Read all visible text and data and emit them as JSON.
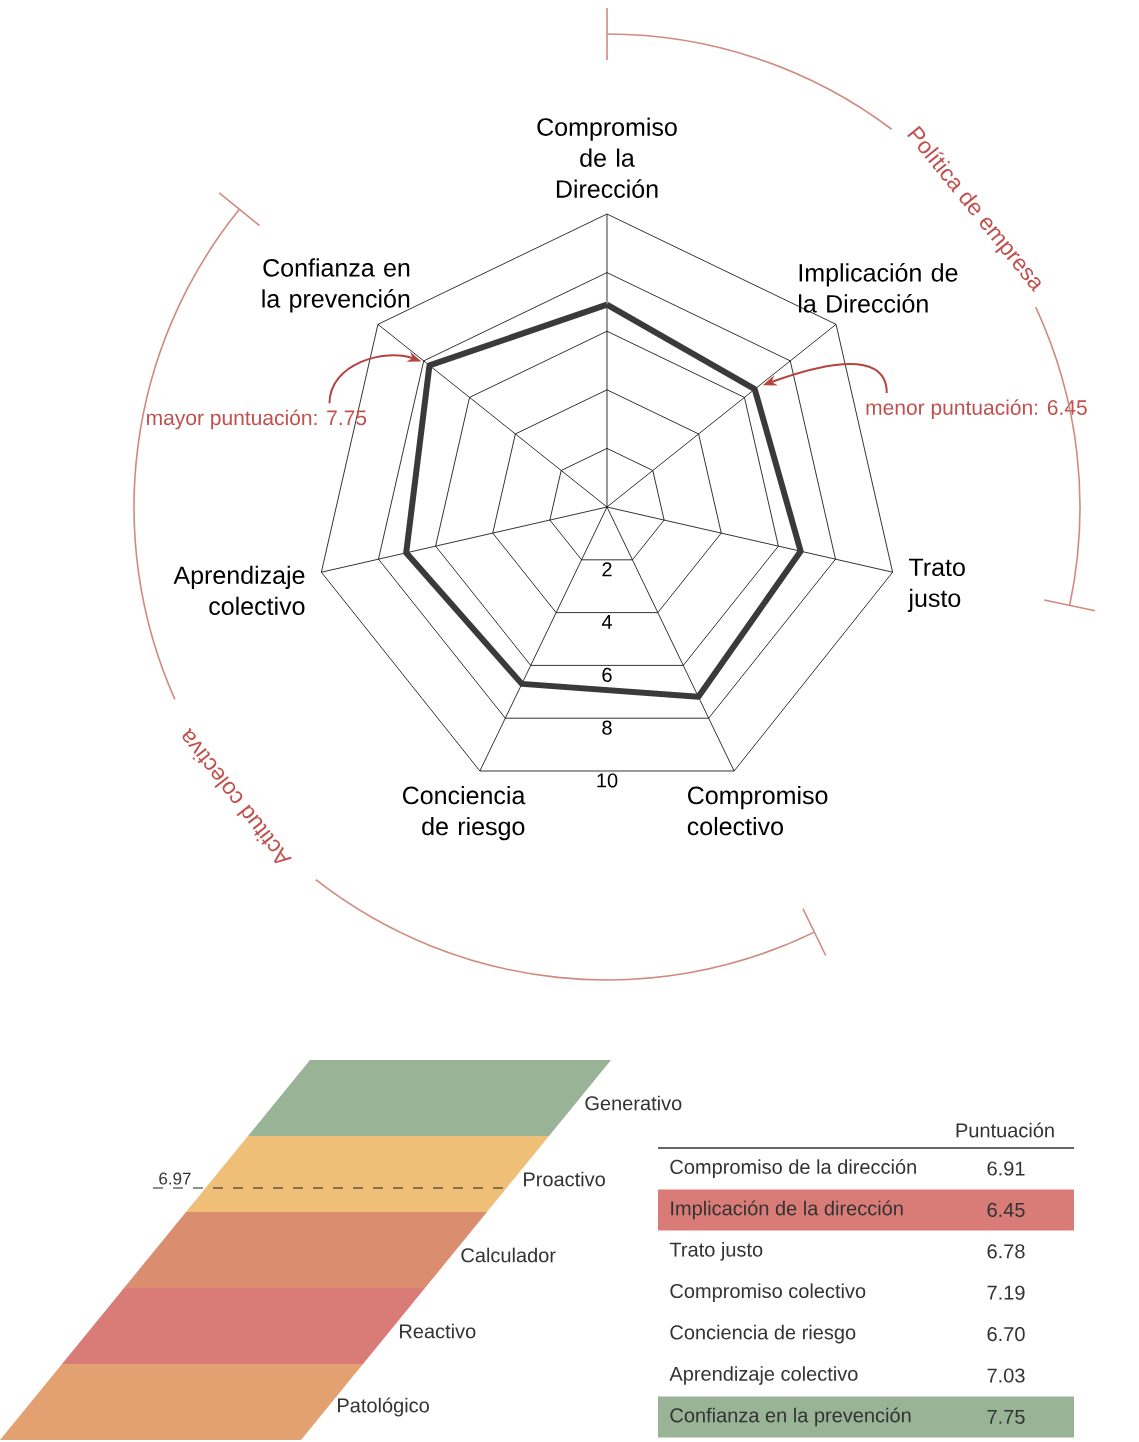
{
  "chart_data": [
    {
      "type": "radar",
      "categories": [
        "Compromiso de la Dirección",
        "Implicación de la Dirección",
        "Trato justo",
        "Compromiso colectivo",
        "Conciencia de riesgo",
        "Aprendizaje colectivo",
        "Confianza en la prevención"
      ],
      "series": [
        {
          "color": "#3a3a3a",
          "values": [
            6.91,
            6.45,
            6.78,
            7.19,
            6.7,
            7.03,
            7.75
          ],
          "value_labels": [
            "6.91",
            "6.45",
            "6.78",
            "7.19",
            "6.70",
            "7.03",
            "7.75"
          ]
        }
      ],
      "ylim": [
        0,
        10
      ],
      "yticks": [
        2,
        4,
        6,
        8,
        10
      ],
      "grid": true,
      "annotations": [
        {
          "text": "menor puntuación: 6.45",
          "x": "Implicación de la Dirección"
        },
        {
          "text": "mayor puntuación: 7.75",
          "x": "Confianza en la prevención"
        },
        "Política de empresa",
        "Actitud colectiva"
      ]
    },
    {
      "type": "other",
      "categories": [
        "Generativo",
        "Proactivo",
        "Calculador",
        "Reactivo",
        "Patológico"
      ],
      "colors": [
        "#99b396",
        "#efbf78",
        "#db8d70",
        "#d97c78",
        "#e3a070"
      ],
      "annotations": [
        "6.97"
      ]
    },
    {
      "type": "other",
      "title": "Puntuación",
      "categories": [
        "Compromiso de la dirección",
        "Implicación de la dirección",
        "Trato justo",
        "Compromiso colectivo",
        "Conciencia de riesgo",
        "Aprendizaje colectivo",
        "Confianza en la prevención"
      ],
      "colors": [
        null,
        "#d97c78",
        null,
        null,
        null,
        null,
        "#99b396"
      ]
    }
  ]
}
